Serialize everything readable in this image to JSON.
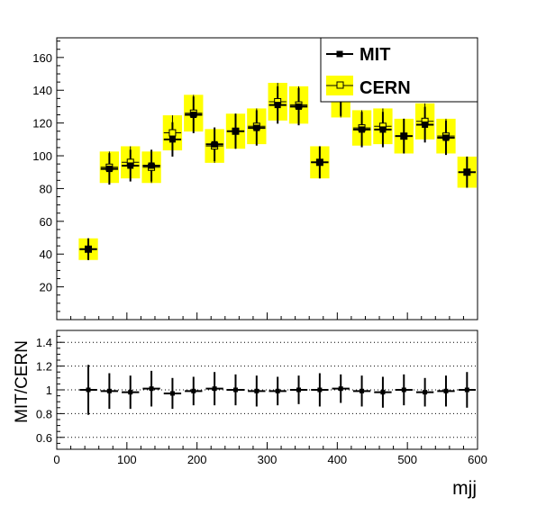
{
  "chart_data": [
    {
      "type": "scatter",
      "panel": "main",
      "xlim": [
        0,
        600
      ],
      "ylim": [
        0,
        172
      ],
      "yticks": [
        20,
        40,
        60,
        80,
        100,
        120,
        140,
        160
      ],
      "bin_edges": [
        30,
        60,
        90,
        120,
        150,
        180,
        210,
        240,
        270,
        300,
        330,
        360,
        390,
        420,
        450,
        480,
        510,
        540,
        570,
        600
      ],
      "series": [
        {
          "name": "MIT",
          "style": "points-with-errors",
          "color": "#000000",
          "values": [
            43,
            92,
            94,
            94,
            110,
            125,
            107,
            115,
            117,
            131,
            130,
            96,
            136,
            116,
            116,
            112,
            119,
            111,
            90
          ],
          "errors": [
            6.6,
            9.6,
            9.7,
            9.7,
            10.5,
            11.2,
            10.3,
            10.7,
            10.8,
            11.4,
            11.4,
            9.8,
            11.7,
            10.8,
            10.8,
            10.6,
            10.9,
            10.5,
            9.5
          ]
        },
        {
          "name": "CERN",
          "style": "open-squares-with-yellow-bands",
          "color": "#000000",
          "band_color": "#ffff00",
          "values": [
            43,
            93,
            96,
            93,
            114,
            126,
            106,
            115,
            118,
            133,
            131,
            96,
            135,
            117,
            118,
            112,
            121,
            112,
            90
          ],
          "errors": [
            6.6,
            9.6,
            9.8,
            9.6,
            10.7,
            11.2,
            10.3,
            10.7,
            10.9,
            11.5,
            11.4,
            9.8,
            11.6,
            10.8,
            10.9,
            10.6,
            11.0,
            10.6,
            9.5
          ]
        }
      ],
      "legend": {
        "placement": "top-right",
        "entries": [
          "MIT",
          "CERN"
        ]
      }
    },
    {
      "type": "scatter",
      "panel": "ratio",
      "xlim": [
        0,
        600
      ],
      "ylim": [
        0.5,
        1.5
      ],
      "xticks": [
        0,
        100,
        200,
        300,
        400,
        500,
        600
      ],
      "yticks": [
        0.6,
        0.8,
        1,
        1.2,
        1.4
      ],
      "xlabel": "mjj",
      "ylabel": "MIT/CERN",
      "grid": "horizontal-dotted",
      "bin_edges": [
        30,
        60,
        90,
        120,
        150,
        180,
        210,
        240,
        270,
        300,
        330,
        360,
        390,
        420,
        450,
        480,
        510,
        540,
        570,
        600
      ],
      "series": [
        {
          "name": "MIT/CERN",
          "values": [
            1.0,
            0.99,
            0.98,
            1.01,
            0.97,
            0.99,
            1.01,
            1.0,
            0.99,
            0.99,
            1.0,
            1.0,
            1.01,
            0.99,
            0.98,
            1.0,
            0.98,
            0.99,
            1.0
          ],
          "errors": [
            0.21,
            0.15,
            0.14,
            0.15,
            0.13,
            0.12,
            0.14,
            0.13,
            0.13,
            0.12,
            0.12,
            0.14,
            0.12,
            0.13,
            0.13,
            0.13,
            0.12,
            0.13,
            0.15
          ]
        }
      ]
    }
  ]
}
